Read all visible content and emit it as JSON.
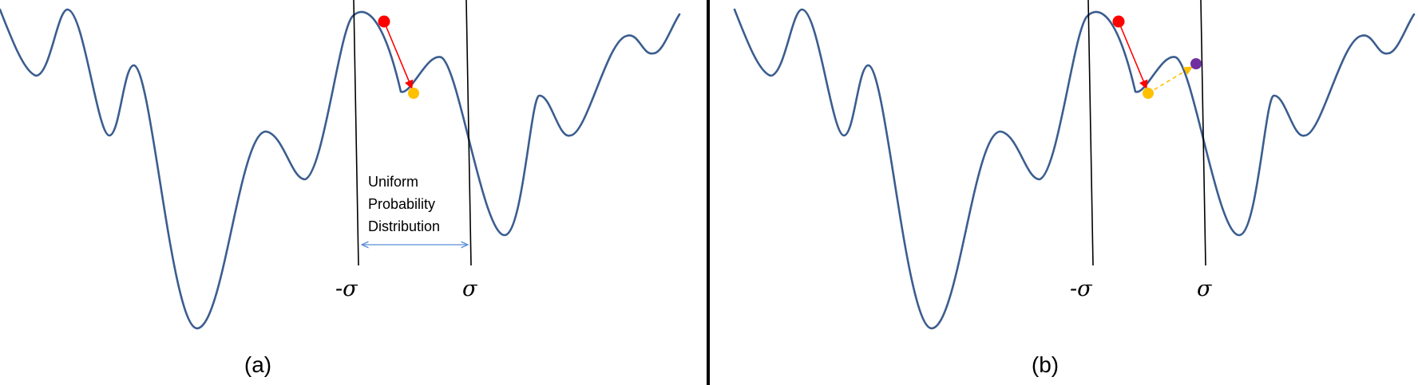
{
  "panel_a": {
    "label": "(a)",
    "neg_sigma": "-σ",
    "sigma": "σ",
    "annotation": [
      "Uniform",
      "Probability",
      "Distribution"
    ]
  },
  "panel_b": {
    "label": "(b)",
    "neg_sigma": "-σ",
    "sigma": "σ"
  },
  "colors": {
    "curve": "#3b5d8f",
    "start_point": "#ff0000",
    "local_min_point": "#ffc000",
    "trial_point": "#7030a0",
    "range_arrow": "#5b8fd6"
  }
}
